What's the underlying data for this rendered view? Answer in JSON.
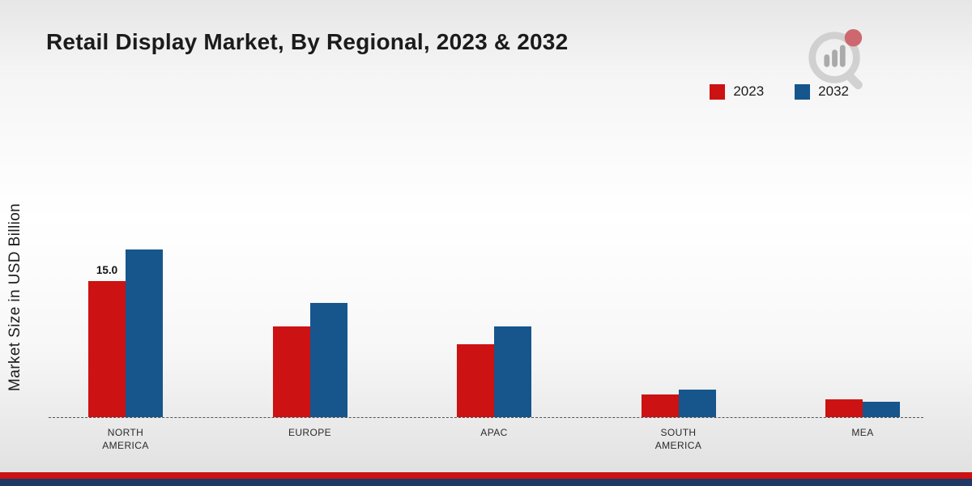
{
  "chart_data": {
    "type": "bar",
    "title": "Retail Display Market, By Regional, 2023 & 2032",
    "ylabel": "Market Size in USD Billion",
    "xlabel": "",
    "categories": [
      "NORTH AMERICA",
      "EUROPE",
      "APAC",
      "SOUTH AMERICA",
      "MEA"
    ],
    "series": [
      {
        "name": "2023",
        "color": "#cc1212",
        "values": [
          15.0,
          10.0,
          8.0,
          2.5,
          2.0
        ],
        "labels": [
          "15.0",
          null,
          null,
          null,
          null
        ]
      },
      {
        "name": "2032",
        "color": "#16568c",
        "values": [
          18.5,
          12.6,
          10.0,
          3.0,
          1.7
        ],
        "labels": [
          null,
          null,
          null,
          null,
          null
        ]
      }
    ],
    "ylim": [
      0,
      20
    ],
    "grid": false,
    "legend_position": "top-right",
    "baseline_style": "dashed"
  },
  "branding": {
    "logo_name": "market-research-future-watermark"
  },
  "footer": {
    "stripe_colors": [
      "#cc1212",
      "#1f3864"
    ]
  }
}
